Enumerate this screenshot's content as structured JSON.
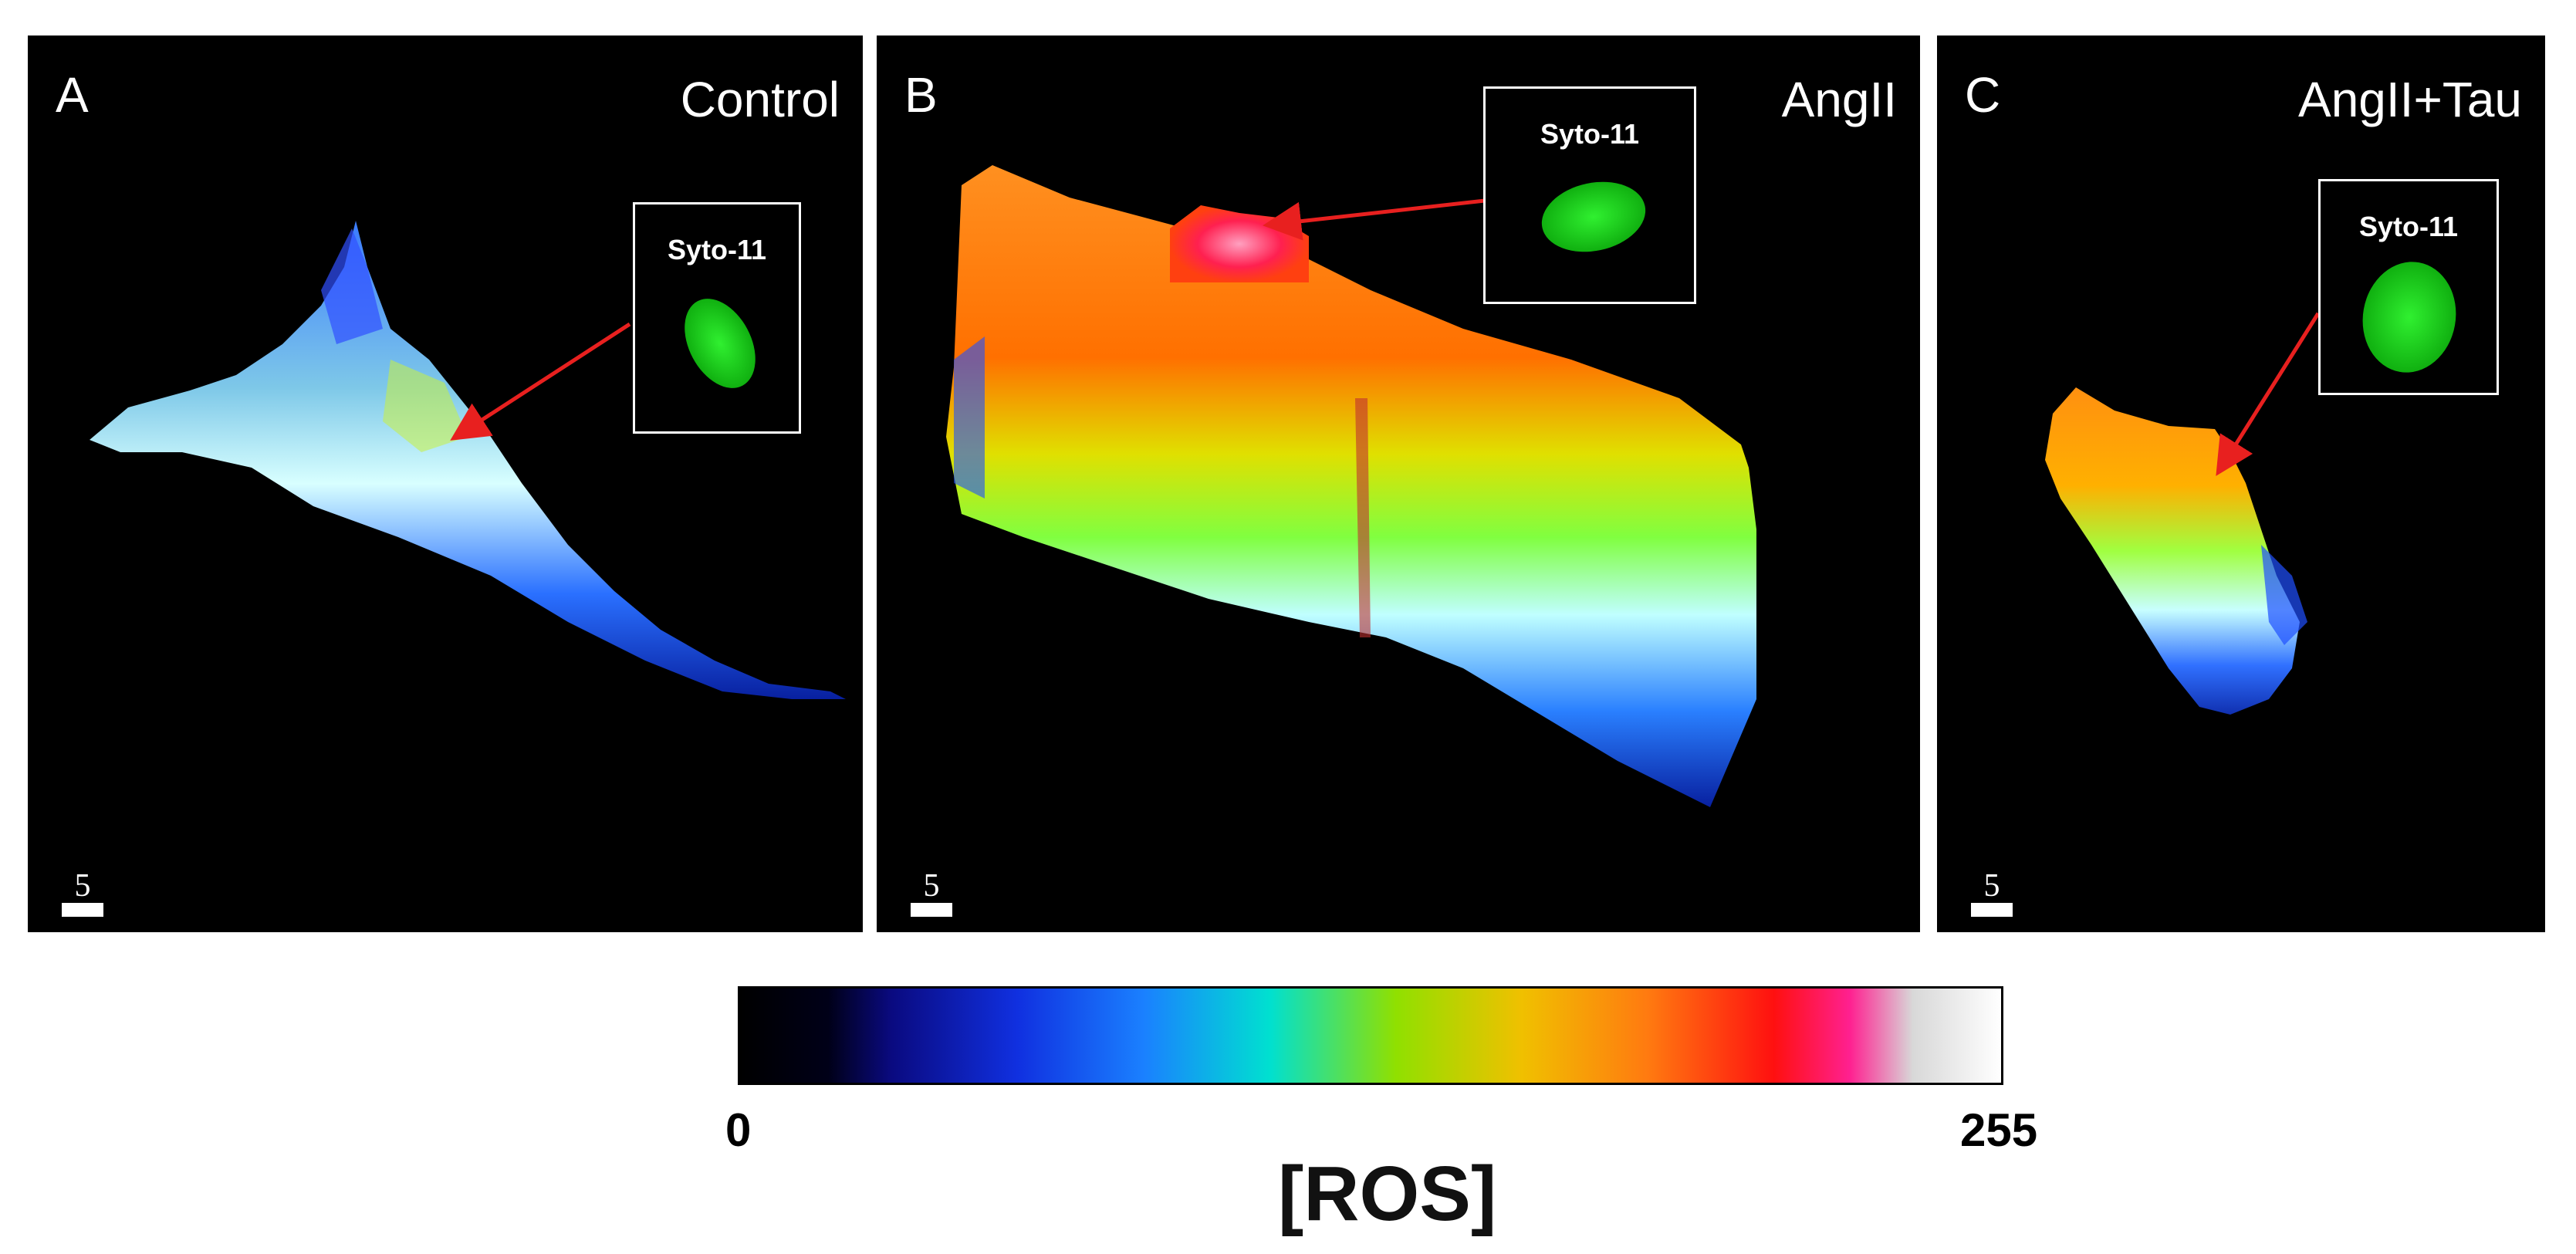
{
  "panels": [
    {
      "letter": "A",
      "condition": "Control",
      "inset_label": "Syto-11",
      "scale_label": "5"
    },
    {
      "letter": "B",
      "condition": "AngII",
      "inset_label": "Syto-11",
      "scale_label": "5"
    },
    {
      "letter": "C",
      "condition": "AngII+Tau",
      "inset_label": "Syto-11",
      "scale_label": "5"
    }
  ],
  "colorbar": {
    "min_label": "0",
    "max_label": "255",
    "title": "[ROS]"
  },
  "colors": {
    "arrow": "#e8201f",
    "nucleus_green": "#22dd22",
    "background": "#000000"
  }
}
